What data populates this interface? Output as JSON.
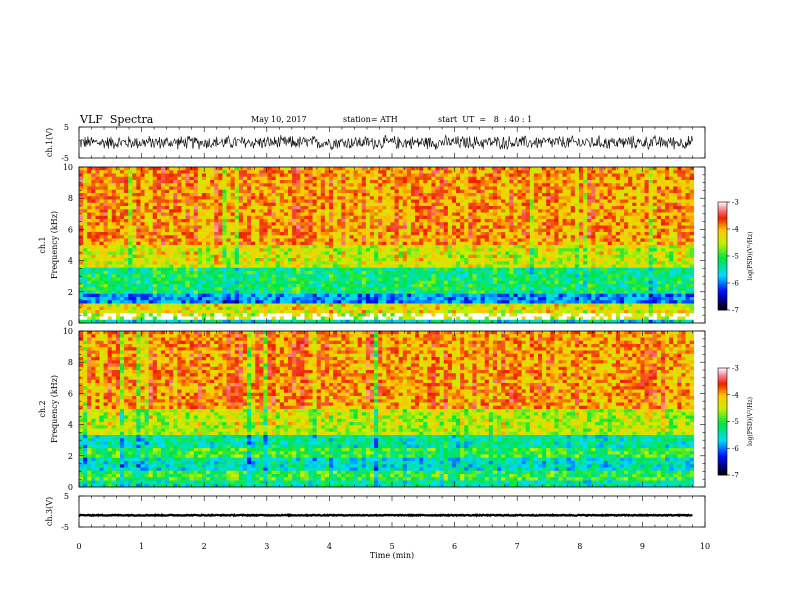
{
  "header": {
    "title": "VLF  Spectra",
    "date": "May 10, 2017",
    "station": "station= ATH",
    "start": "start  UT  =   8  : 40 : 1"
  },
  "chart_data": [
    {
      "type": "line",
      "name": "waveform-ch1",
      "ylabel": "ch.1(V)",
      "xlim": [
        0,
        10
      ],
      "ylim": [
        -5,
        5
      ],
      "yticks": [
        5,
        -5
      ],
      "data_span_min": [
        0,
        9.8
      ],
      "approx_amplitude_range": [
        -2.5,
        2.5
      ],
      "color": "#000000"
    },
    {
      "type": "heatmap",
      "name": "spectrogram-ch1",
      "ylabel": "ch.1\nFrequency  (kHz)",
      "xlim": [
        0,
        10
      ],
      "ylim": [
        0,
        10
      ],
      "yticks": [
        0,
        2,
        4,
        6,
        8,
        10
      ],
      "colorbar": {
        "label": "log(PSD)(V²/Hz)",
        "range": [
          -7,
          -3
        ],
        "ticks": [
          -3,
          -4,
          -5,
          -6,
          -7
        ]
      },
      "bands_khz": [
        {
          "range": [
            0.0,
            0.15
          ],
          "level": -5.5
        },
        {
          "range": [
            0.15,
            0.55
          ],
          "level": "gap"
        },
        {
          "range": [
            0.55,
            1.2
          ],
          "level": -4.3
        },
        {
          "range": [
            1.2,
            1.9
          ],
          "level": -5.9
        },
        {
          "range": [
            1.9,
            3.6
          ],
          "level": -5.2
        },
        {
          "range": [
            3.6,
            5.0
          ],
          "level": -4.4
        },
        {
          "range": [
            5.0,
            10.0
          ],
          "level": -3.9
        }
      ]
    },
    {
      "type": "heatmap",
      "name": "spectrogram-ch2",
      "ylabel": "ch.2\nFrequency  (kHz)",
      "xlim": [
        0,
        10
      ],
      "ylim": [
        0,
        10
      ],
      "yticks": [
        0,
        2,
        4,
        6,
        8,
        10
      ],
      "colorbar": {
        "label": "log(PSD)(V²/Hz)",
        "range": [
          -7,
          -3
        ],
        "ticks": [
          -3,
          -4,
          -5,
          -6,
          -7
        ]
      },
      "bands_khz": [
        {
          "range": [
            0.0,
            0.5
          ],
          "level": -5.4
        },
        {
          "range": [
            0.5,
            1.0
          ],
          "level": -5.0
        },
        {
          "range": [
            1.0,
            1.9
          ],
          "level": -5.5
        },
        {
          "range": [
            1.9,
            2.4
          ],
          "level": -5.0
        },
        {
          "range": [
            2.4,
            3.4
          ],
          "level": -5.4
        },
        {
          "range": [
            3.4,
            5.0
          ],
          "level": -4.5
        },
        {
          "range": [
            5.0,
            10.0
          ],
          "level": -3.9
        }
      ]
    },
    {
      "type": "line",
      "name": "waveform-ch3",
      "ylabel": "ch.3(V)",
      "xlim": [
        0,
        10
      ],
      "ylim": [
        -5,
        5
      ],
      "yticks": [
        5,
        -5
      ],
      "data_span_min": [
        0,
        9.8
      ],
      "approx_level": -1.2,
      "color": "#000000"
    }
  ],
  "x_axis": {
    "label": "Time  (min)",
    "ticks": [
      "0",
      "1",
      "2",
      "3",
      "4",
      "5",
      "6",
      "7",
      "8",
      "9",
      "10"
    ]
  }
}
